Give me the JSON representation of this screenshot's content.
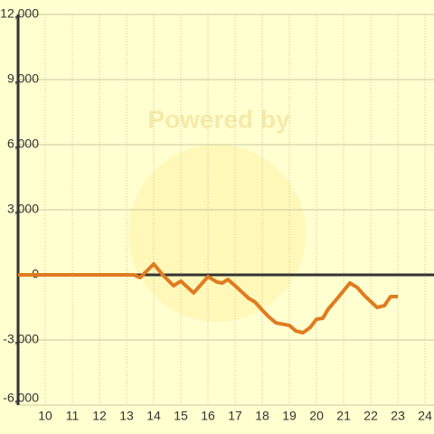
{
  "chart_data": {
    "type": "line",
    "watermark": "Powered by",
    "x": [
      9,
      13.27,
      13.5,
      14.0,
      14.33,
      14.73,
      15.0,
      15.47,
      16.0,
      16.33,
      16.53,
      16.73,
      17.07,
      17.5,
      17.73,
      18.0,
      18.23,
      18.5,
      19.0,
      19.23,
      19.5,
      19.77,
      20.0,
      20.23,
      20.43,
      20.77,
      21.23,
      21.5,
      21.77,
      22.23,
      22.5,
      22.73,
      23.0
    ],
    "series": [
      {
        "color": "#e07b20",
        "values": [
          0,
          0,
          -125,
          500,
          0,
          -500,
          -290,
          -830,
          -80,
          -330,
          -375,
          -210,
          -580,
          -1080,
          -1250,
          -1625,
          -1920,
          -2210,
          -2330,
          -2580,
          -2670,
          -2420,
          -2040,
          -2000,
          -1580,
          -1080,
          -375,
          -580,
          -960,
          -1500,
          -1420,
          -1000,
          -1000
        ]
      }
    ],
    "xlim": [
      9,
      24.33
    ],
    "xticks": [
      10,
      11,
      12,
      13,
      14,
      15,
      16,
      17,
      18,
      19,
      20,
      21,
      22,
      23,
      24
    ],
    "ylim": [
      -6000,
      12000
    ],
    "yticks": [
      {
        "value": -6000,
        "label": "-6,000"
      },
      {
        "value": -3000,
        "label": "-3,000"
      },
      0,
      {
        "value": 3000,
        "label": "3,000"
      },
      {
        "value": 6000,
        "label": "6,000"
      },
      {
        "value": 9000,
        "label": "9,000"
      },
      {
        "value": 12000,
        "label": "12,000"
      }
    ],
    "grid": true
  }
}
